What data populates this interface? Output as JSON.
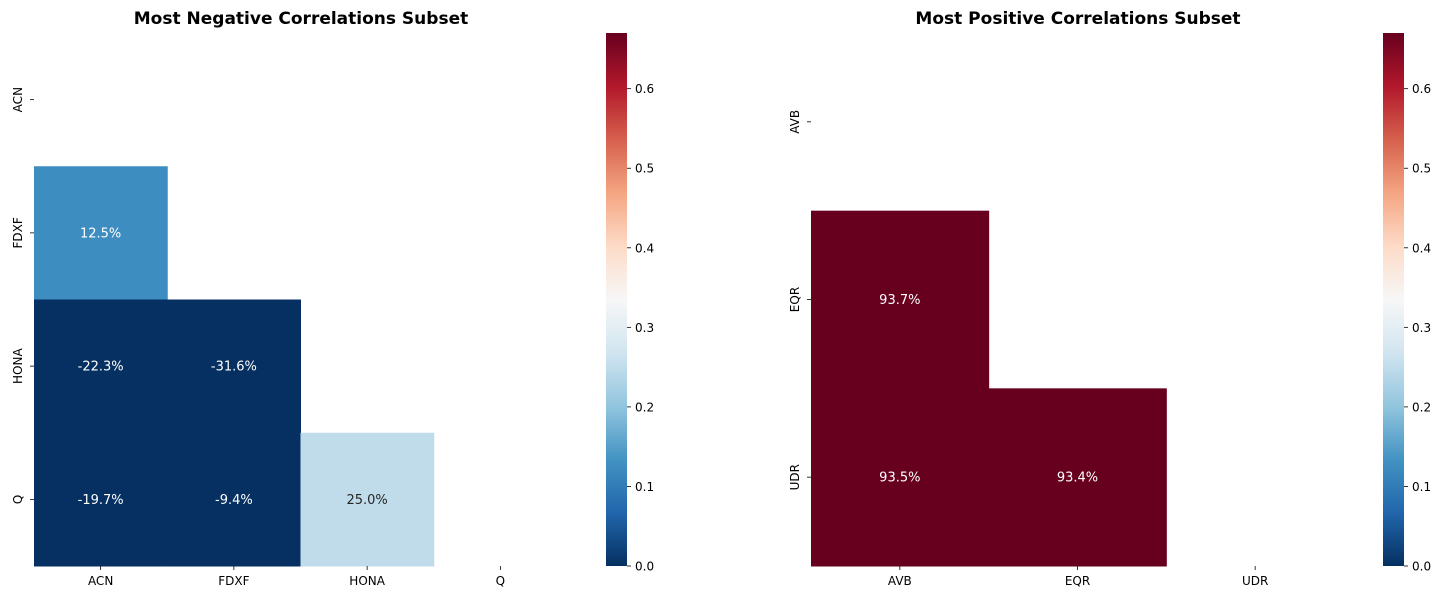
{
  "chart_data": [
    {
      "type": "heatmap",
      "title": "Most Negative Correlations Subset",
      "labels": [
        "ACN",
        "FDXF",
        "HONA",
        "Q"
      ],
      "matrix": [
        [
          null,
          null,
          null,
          null
        ],
        [
          0.125,
          null,
          null,
          null
        ],
        [
          -0.223,
          -0.316,
          null,
          null
        ],
        [
          -0.197,
          -0.094,
          0.25,
          null
        ]
      ],
      "annotations": [
        [
          "",
          "",
          "",
          ""
        ],
        [
          "12.5%",
          "",
          "",
          ""
        ],
        [
          "-22.3%",
          "-31.6%",
          "",
          ""
        ],
        [
          "-19.7%",
          "-9.4%",
          "25.0%",
          ""
        ]
      ],
      "mask": "upper-triangle-including-diagonal",
      "colormap": "RdBu_r",
      "vmin": 0.0,
      "vmax": 0.67,
      "colorbar_ticks": [
        "0.0",
        "0.1",
        "0.2",
        "0.3",
        "0.4",
        "0.5",
        "0.6"
      ]
    },
    {
      "type": "heatmap",
      "title": "Most Positive Correlations Subset",
      "labels": [
        "AVB",
        "EQR",
        "UDR"
      ],
      "matrix": [
        [
          null,
          null,
          null
        ],
        [
          0.937,
          null,
          null
        ],
        [
          0.935,
          0.934,
          null
        ]
      ],
      "annotations": [
        [
          "",
          "",
          ""
        ],
        [
          "93.7%",
          "",
          ""
        ],
        [
          "93.5%",
          "93.4%",
          ""
        ]
      ],
      "mask": "upper-triangle-including-diagonal",
      "colormap": "RdBu_r",
      "vmin": 0.0,
      "vmax": 0.67,
      "colorbar_ticks": [
        "0.0",
        "0.1",
        "0.2",
        "0.3",
        "0.4",
        "0.5",
        "0.6"
      ]
    }
  ]
}
